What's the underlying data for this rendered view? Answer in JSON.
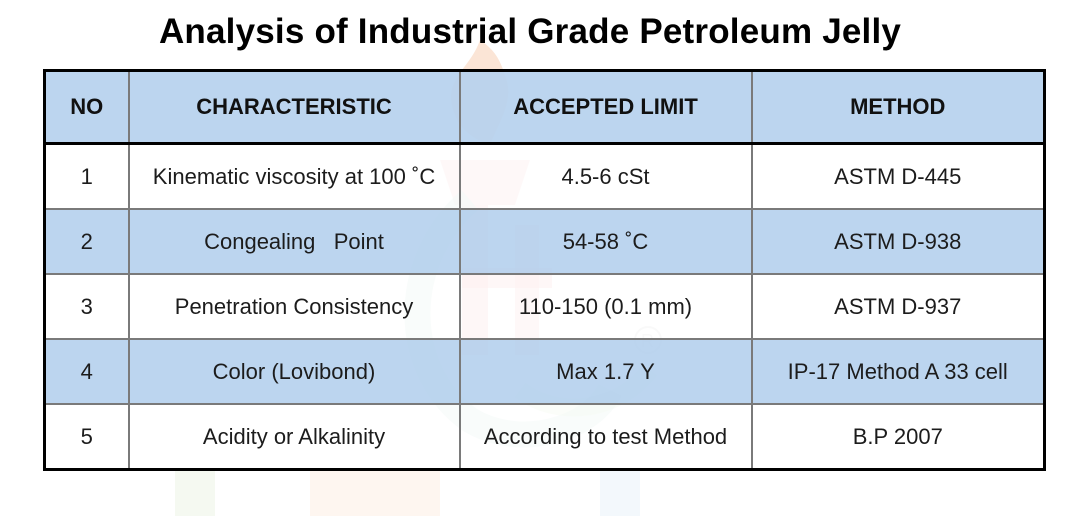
{
  "title": "Analysis of Industrial Grade Petroleum Jelly",
  "table": {
    "headers": [
      "NO",
      "CHARACTERISTIC",
      "ACCEPTED LIMIT",
      "METHOD"
    ],
    "rows": [
      {
        "no": "1",
        "characteristic": "Kinematic viscosity at 100 ˚C",
        "limit": "4.5-6 cSt",
        "method": "ASTM D-445"
      },
      {
        "no": "2",
        "characteristic": "Congealing   Point",
        "limit": "54-58 ˚C",
        "method": "ASTM D-938"
      },
      {
        "no": "3",
        "characteristic": "Penetration Consistency",
        "limit": "110-150 (0.1 mm)",
        "method": "ASTM D-937"
      },
      {
        "no": "4",
        "characteristic": "Color (Lovibond)",
        "limit": "Max 1.7 Y",
        "method": "IP-17 Method A 33 cell"
      },
      {
        "no": "5",
        "characteristic": "Acidity or Alkalinity",
        "limit": "According to test Method",
        "method": "B.P 2007"
      }
    ]
  },
  "colors": {
    "header_fill": "#b7d2ee",
    "band_fill": "#b7d2ee",
    "border": "#000000",
    "grid": "#7a7a7a"
  },
  "watermark": {
    "icon": "torch-logo-watermark",
    "mark": "®"
  }
}
